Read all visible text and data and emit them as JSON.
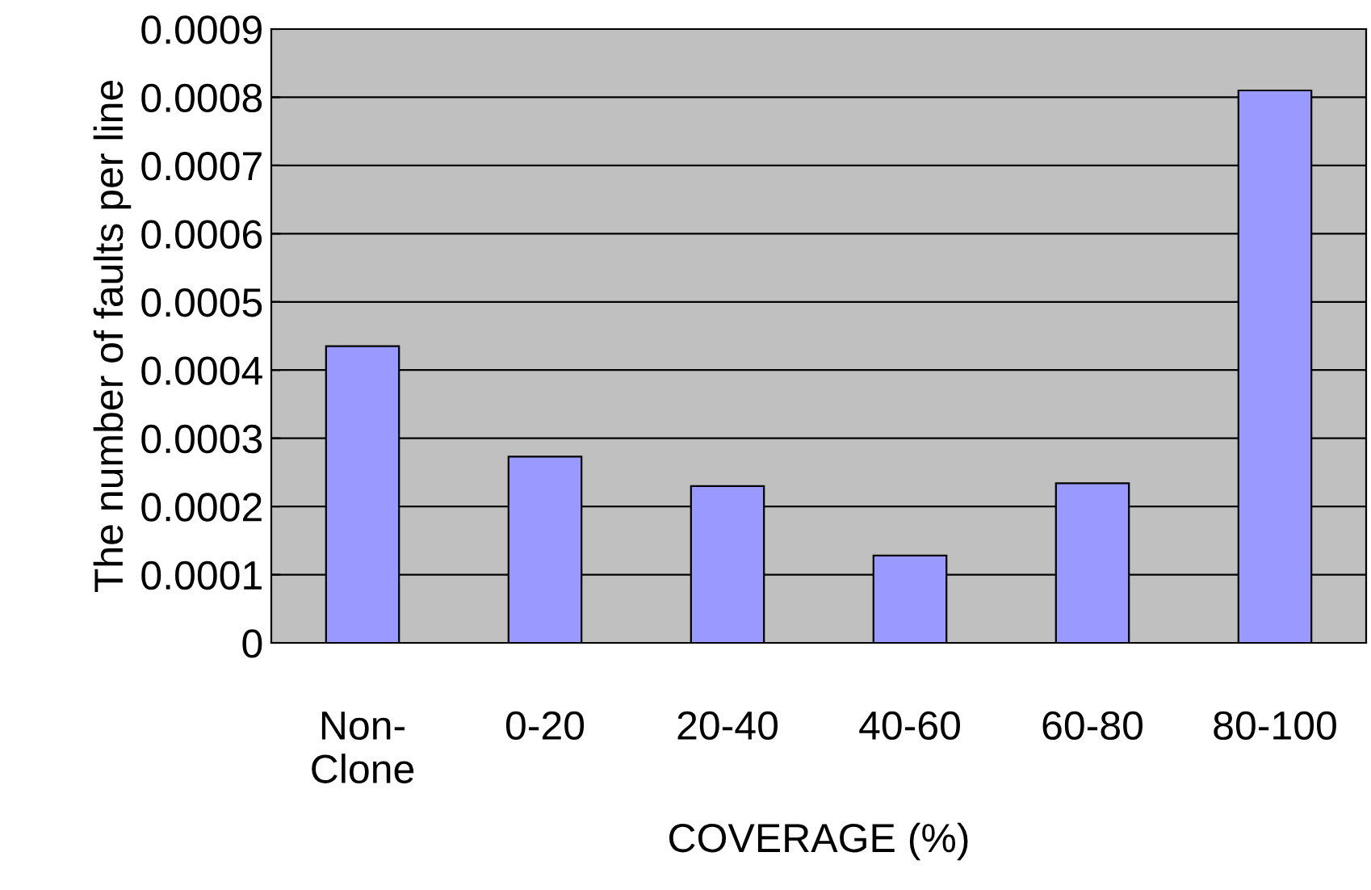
{
  "chart_data": {
    "type": "bar",
    "xlabel": "COVERAGE (%)",
    "ylabel": "The number of faults per line",
    "categories": [
      "Non-\nClone",
      "0-20",
      "20-40",
      "40-60",
      "60-80",
      "80-100"
    ],
    "values": [
      0.000435,
      0.000273,
      0.00023,
      0.000128,
      0.000234,
      0.00081
    ],
    "color": "#9999ff",
    "ylim": [
      0,
      0.0009
    ],
    "yticks": [
      0,
      0.0001,
      0.0002,
      0.0003,
      0.0004,
      0.0005,
      0.0006,
      0.0007,
      0.0008,
      0.0009
    ],
    "grid": "y"
  }
}
